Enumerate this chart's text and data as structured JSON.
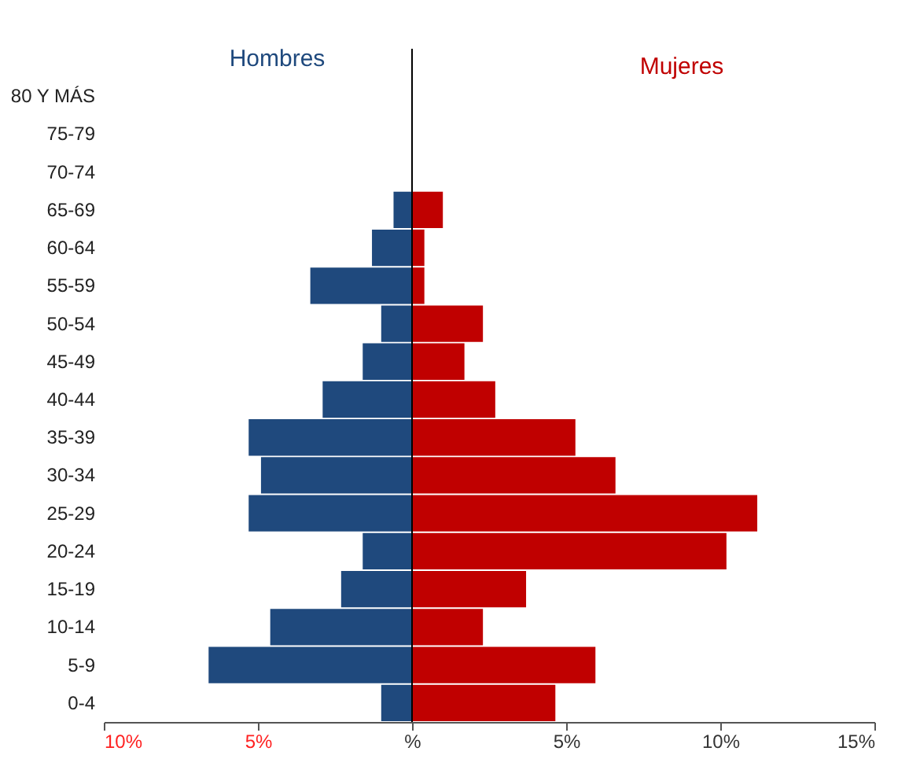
{
  "chart_data": {
    "type": "bar",
    "orientation": "horizontal",
    "categories": [
      "80 Y MÁS",
      "75-79",
      "70-74",
      "65-69",
      "60-64",
      "55-59",
      "50-54",
      "45-49",
      "40-44",
      "35-39",
      "30-34",
      "25-29",
      "20-24",
      "15-19",
      "10-14",
      "5-9",
      "0-4"
    ],
    "series": [
      {
        "name": "Hombres",
        "color": "#1f497d",
        "values": [
          0,
          0,
          0,
          -0.6,
          -1.3,
          -3.3,
          -1.0,
          -1.6,
          -2.9,
          -5.3,
          -4.9,
          -5.3,
          -1.6,
          -2.3,
          -4.6,
          -6.6,
          -1.0
        ]
      },
      {
        "name": "Mujeres",
        "color": "#c00000",
        "values": [
          0,
          0,
          0,
          1.0,
          0.4,
          0.4,
          2.3,
          1.7,
          2.7,
          5.3,
          6.6,
          11.2,
          10.2,
          3.7,
          2.3,
          5.95,
          4.65
        ]
      }
    ],
    "xlim": [
      -10,
      15
    ],
    "xticks": [
      {
        "value": -10,
        "label": "10%"
      },
      {
        "value": -5,
        "label": "5%"
      },
      {
        "value": 0,
        "label": "%"
      },
      {
        "value": 5,
        "label": "5%"
      },
      {
        "value": 10,
        "label": "10%"
      },
      {
        "value": 15,
        "label": "15%"
      }
    ],
    "ref_lines": [
      {
        "axis": "x",
        "value": 0,
        "color": "#000000"
      }
    ],
    "stacked": true,
    "grid": false,
    "legend": false
  }
}
